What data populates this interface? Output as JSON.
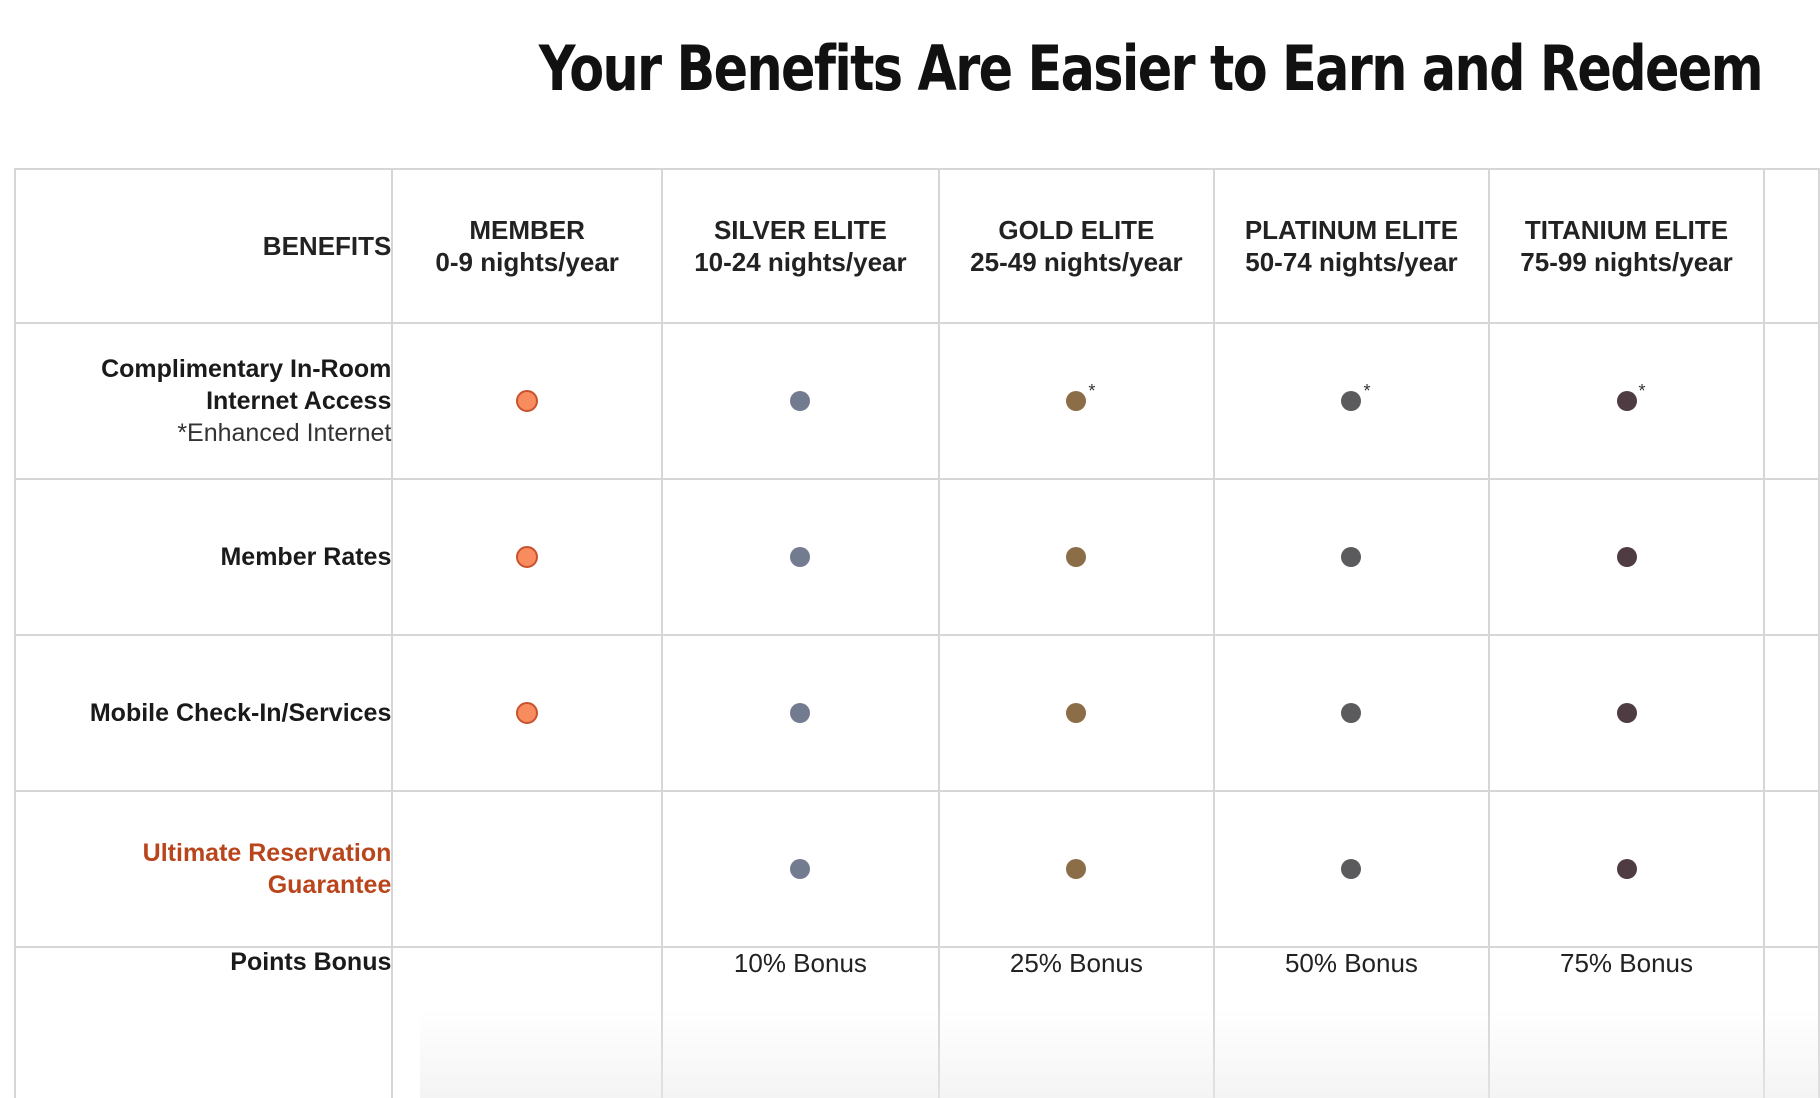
{
  "title": "Your Benefits Are Easier to Earn and Redeem",
  "header": {
    "benefits_label": "BENEFITS",
    "tiers": [
      {
        "name": "MEMBER",
        "nights": "0-9 nights/year"
      },
      {
        "name": "SILVER ELITE",
        "nights": "10-24 nights/year"
      },
      {
        "name": "GOLD ELITE",
        "nights": "25-49 nights/year"
      },
      {
        "name": "PLATINUM ELITE",
        "nights": "50-74 nights/year"
      },
      {
        "name": "TITANIUM ELITE",
        "nights": "75-99 nights/year"
      }
    ]
  },
  "rows": [
    {
      "label_line1": "Complimentary In-Room",
      "label_line2": "Internet Access",
      "note": "*Enhanced Internet",
      "marker": "*"
    },
    {
      "label": "Member Rates"
    },
    {
      "label": "Mobile Check-In/Services"
    },
    {
      "label_line1": "Ultimate Reservation",
      "label_line2": "Guarantee"
    },
    {
      "label": "Points Bonus",
      "bonuses": [
        "10% Bonus",
        "25% Bonus",
        "50% Bonus",
        "75% Bonus"
      ]
    }
  ],
  "colors": {
    "member": "#f98c5f",
    "silver": "#737b91",
    "gold": "#8b6d47",
    "platinum": "#5b5b5e",
    "titanium": "#4e3c42",
    "accent": "#b8451c"
  }
}
